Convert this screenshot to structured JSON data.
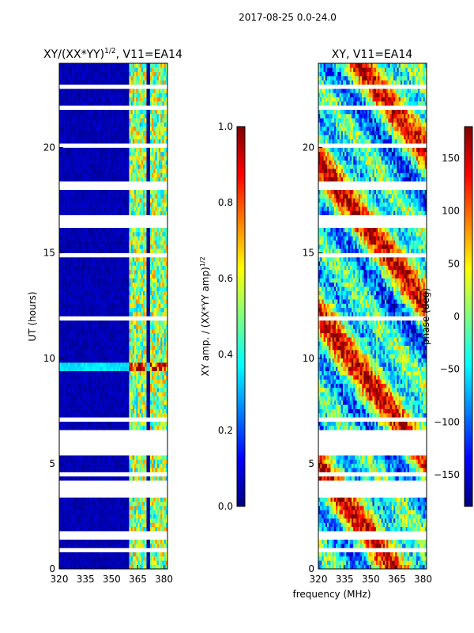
{
  "suptitle": "2017-08-25 0.0-24.0",
  "chart_data": [
    {
      "type": "heatmap",
      "title": "XY/(XX*YY)^1/2, V11=EA14",
      "xlabel": "frequency (MHz)",
      "ylabel": "UT (hours)",
      "xlim": [
        320,
        382
      ],
      "ylim": [
        0,
        24
      ],
      "xticks": [
        320,
        335,
        350,
        365,
        380
      ],
      "yticks": [
        0,
        5,
        10,
        15,
        20
      ],
      "colorscale": "jet",
      "colorbar": {
        "label": "XY amp. / (XX*YY amp)^1/2",
        "range": [
          0.0,
          1.0
        ],
        "ticks": [
          "0.0",
          "0.2",
          "0.4",
          "0.6",
          "0.8",
          "1.0"
        ]
      },
      "bright_bands_mhz": [
        [
          360,
          364
        ],
        [
          365,
          369
        ],
        [
          372,
          382
        ]
      ],
      "gap_hours": [
        [
          3.4,
          4.0
        ],
        [
          5.4,
          6.1
        ],
        [
          18.0,
          18.2
        ],
        [
          16.5,
          16.6
        ],
        [
          14.8,
          14.9
        ]
      ]
    },
    {
      "type": "heatmap",
      "title": "XY, V11=EA14",
      "xlabel": "frequency (MHz)",
      "ylabel": "",
      "xlim": [
        320,
        382
      ],
      "ylim": [
        0,
        24
      ],
      "xticks": [
        320,
        335,
        350,
        365,
        380
      ],
      "yticks": [
        0,
        5,
        10,
        15,
        20
      ],
      "colorscale": "jet",
      "colorbar": {
        "label": "phase (deg)",
        "range": [
          -180,
          180
        ],
        "ticks": [
          "−150",
          "−100",
          "−50",
          "0",
          "50",
          "100",
          "150"
        ]
      }
    }
  ],
  "palette": [
    "#00007f",
    "#0000ff",
    "#007fff",
    "#00ffff",
    "#7fff7f",
    "#ffff00",
    "#ff7f00",
    "#ff0000",
    "#7f0000"
  ]
}
